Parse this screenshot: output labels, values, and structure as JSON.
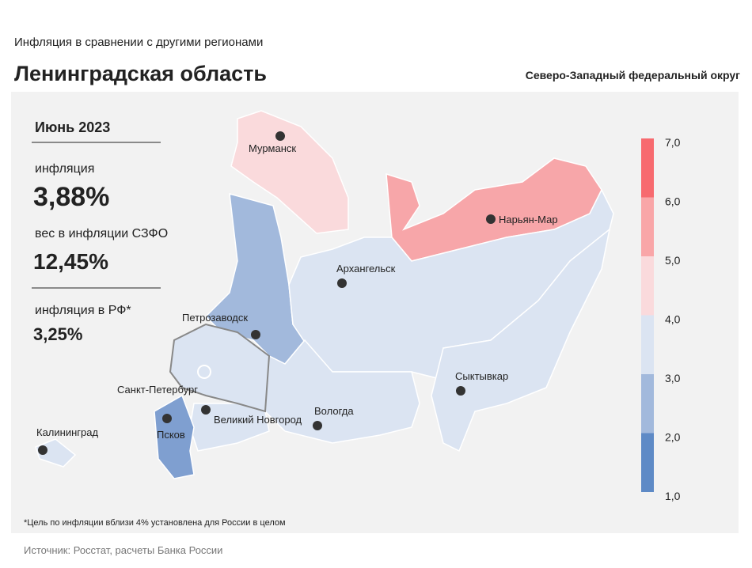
{
  "header": {
    "subtitle": "Инфляция  в сравнении  с другими  регионами",
    "title": "Ленинградская область",
    "district": "Северо-Западный федеральный округ"
  },
  "panel": {
    "period": "Июнь 2023",
    "inflation_label": "инфляция",
    "inflation_value": "3,88%",
    "weight_label": "вес в инфляции  СЗФО",
    "weight_value": "12,45%",
    "rf_label": "инфляция  в РФ*",
    "rf_value": "3,25%"
  },
  "cities": [
    "Мурманск",
    "Нарьян-Мар",
    "Архангельск",
    "Петрозаводск",
    "Сыктывкар",
    "Санкт-Петербург",
    "Вологда",
    "Великий Новгород",
    "Псков",
    "Калининград"
  ],
  "legend": {
    "ticks": [
      {
        "value": 7,
        "label": "7,0"
      },
      {
        "value": 6,
        "label": "6,0"
      },
      {
        "value": 5,
        "label": "5,0"
      },
      {
        "value": 4,
        "label": "4,0"
      },
      {
        "value": 3,
        "label": "3,0"
      },
      {
        "value": 2,
        "label": "2,0"
      },
      {
        "value": 1,
        "label": "1,0"
      }
    ],
    "colors": [
      "#f76a6f",
      "#f9a6a8",
      "#fadadc",
      "#dbe4f2",
      "#a2b9dc",
      "#5e8ac6"
    ]
  },
  "footnote": "*Цель по инфляции вблизи 4% установлена для России в целом",
  "source": "Источник: Росстат, расчеты Банка России"
}
